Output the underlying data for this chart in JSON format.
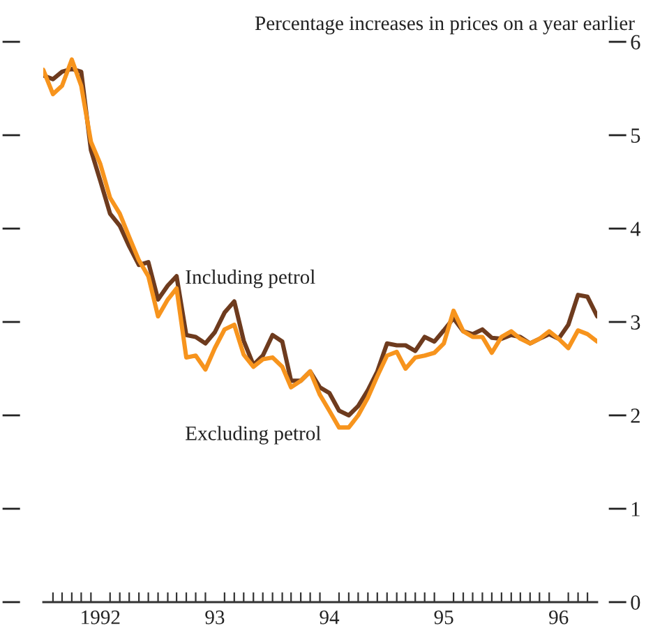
{
  "chart_data": {
    "type": "line",
    "title": "Percentage increases in prices on a year earlier",
    "x": [
      "1992-01",
      "1992-02",
      "1992-03",
      "1992-04",
      "1992-05",
      "1992-06",
      "1992-07",
      "1992-08",
      "1992-09",
      "1992-10",
      "1992-11",
      "1992-12",
      "1993-01",
      "1993-02",
      "1993-03",
      "1993-04",
      "1993-05",
      "1993-06",
      "1993-07",
      "1993-08",
      "1993-09",
      "1993-10",
      "1993-11",
      "1993-12",
      "1994-01",
      "1994-02",
      "1994-03",
      "1994-04",
      "1994-05",
      "1994-06",
      "1994-07",
      "1994-08",
      "1994-09",
      "1994-10",
      "1994-11",
      "1994-12",
      "1995-01",
      "1995-02",
      "1995-03",
      "1995-04",
      "1995-05",
      "1995-06",
      "1995-07",
      "1995-08",
      "1995-09",
      "1995-10",
      "1995-11",
      "1995-12",
      "1996-01",
      "1996-02",
      "1996-03",
      "1996-04",
      "1996-05",
      "1996-06",
      "1996-07",
      "1996-08",
      "1996-09",
      "1996-10",
      "1996-11"
    ],
    "series": [
      {
        "name": "Including petrol",
        "color": "#6e3b1e",
        "values": [
          5.64,
          5.6,
          5.68,
          5.71,
          5.68,
          4.84,
          4.51,
          4.16,
          4.03,
          3.81,
          3.61,
          3.64,
          3.24,
          3.39,
          3.49,
          2.86,
          2.84,
          2.77,
          2.89,
          3.1,
          3.22,
          2.8,
          2.54,
          2.64,
          2.86,
          2.79,
          2.37,
          2.37,
          2.47,
          2.3,
          2.24,
          2.05,
          2.0,
          2.1,
          2.27,
          2.47,
          2.77,
          2.75,
          2.75,
          2.69,
          2.84,
          2.79,
          2.91,
          3.04,
          2.9,
          2.87,
          2.92,
          2.83,
          2.82,
          2.86,
          2.84,
          2.77,
          2.82,
          2.87,
          2.82,
          2.97,
          3.29,
          3.27,
          3.06
        ]
      },
      {
        "name": "Excluding petrol",
        "color": "#f7941d",
        "values": [
          5.7,
          5.44,
          5.53,
          5.81,
          5.53,
          4.93,
          4.69,
          4.33,
          4.16,
          3.91,
          3.66,
          3.49,
          3.06,
          3.24,
          3.36,
          2.62,
          2.64,
          2.49,
          2.72,
          2.92,
          2.97,
          2.65,
          2.52,
          2.6,
          2.62,
          2.52,
          2.3,
          2.37,
          2.47,
          2.22,
          2.05,
          1.87,
          1.87,
          2.0,
          2.19,
          2.42,
          2.64,
          2.68,
          2.5,
          2.62,
          2.64,
          2.67,
          2.77,
          3.12,
          2.9,
          2.84,
          2.84,
          2.67,
          2.84,
          2.9,
          2.82,
          2.77,
          2.82,
          2.9,
          2.82,
          2.72,
          2.91,
          2.87,
          2.79
        ]
      }
    ],
    "xlim": [
      "1992-01",
      "1996-11"
    ],
    "xticks": [
      {
        "value": "1992-07",
        "label": "1992"
      },
      {
        "value": "1993-07",
        "label": "93"
      },
      {
        "value": "1994-07",
        "label": "94"
      },
      {
        "value": "1995-07",
        "label": "95"
      },
      {
        "value": "1996-07",
        "label": "96"
      },
      {
        "value": "1992-02",
        "label": null
      },
      {
        "value": "1992-03",
        "label": null
      },
      {
        "value": "1992-04",
        "label": null
      },
      {
        "value": "1992-05",
        "label": null
      },
      {
        "value": "1992-06",
        "label": null
      },
      {
        "value": "1992-08",
        "label": null
      },
      {
        "value": "1992-09",
        "label": null
      },
      {
        "value": "1992-10",
        "label": null
      },
      {
        "value": "1992-11",
        "label": null
      },
      {
        "value": "1992-12",
        "label": null
      },
      {
        "value": "1993-01",
        "label": null
      },
      {
        "value": "1993-02",
        "label": null
      },
      {
        "value": "1993-03",
        "label": null
      },
      {
        "value": "1993-04",
        "label": null
      },
      {
        "value": "1993-05",
        "label": null
      },
      {
        "value": "1993-06",
        "label": null
      },
      {
        "value": "1993-08",
        "label": null
      },
      {
        "value": "1993-09",
        "label": null
      },
      {
        "value": "1993-10",
        "label": null
      },
      {
        "value": "1993-11",
        "label": null
      },
      {
        "value": "1993-12",
        "label": null
      },
      {
        "value": "1994-01",
        "label": null
      },
      {
        "value": "1994-02",
        "label": null
      },
      {
        "value": "1994-03",
        "label": null
      },
      {
        "value": "1994-04",
        "label": null
      },
      {
        "value": "1994-05",
        "label": null
      },
      {
        "value": "1994-06",
        "label": null
      },
      {
        "value": "1994-08",
        "label": null
      },
      {
        "value": "1994-09",
        "label": null
      },
      {
        "value": "1994-10",
        "label": null
      },
      {
        "value": "1994-11",
        "label": null
      },
      {
        "value": "1994-12",
        "label": null
      },
      {
        "value": "1995-01",
        "label": null
      },
      {
        "value": "1995-02",
        "label": null
      },
      {
        "value": "1995-03",
        "label": null
      },
      {
        "value": "1995-04",
        "label": null
      },
      {
        "value": "1995-05",
        "label": null
      },
      {
        "value": "1995-06",
        "label": null
      },
      {
        "value": "1995-08",
        "label": null
      },
      {
        "value": "1995-09",
        "label": null
      },
      {
        "value": "1995-10",
        "label": null
      },
      {
        "value": "1995-11",
        "label": null
      },
      {
        "value": "1995-12",
        "label": null
      },
      {
        "value": "1996-01",
        "label": null
      },
      {
        "value": "1996-02",
        "label": null
      },
      {
        "value": "1996-03",
        "label": null
      },
      {
        "value": "1996-04",
        "label": null
      },
      {
        "value": "1996-05",
        "label": null
      },
      {
        "value": "1996-06",
        "label": null
      },
      {
        "value": "1996-08",
        "label": null
      },
      {
        "value": "1996-09",
        "label": null
      },
      {
        "value": "1996-10",
        "label": null
      }
    ],
    "ylim": [
      0,
      6
    ],
    "yticks": [
      0,
      1,
      2,
      3,
      4,
      5,
      6
    ],
    "grid": false,
    "legend": false,
    "marker": "none",
    "line_style": "solid"
  }
}
